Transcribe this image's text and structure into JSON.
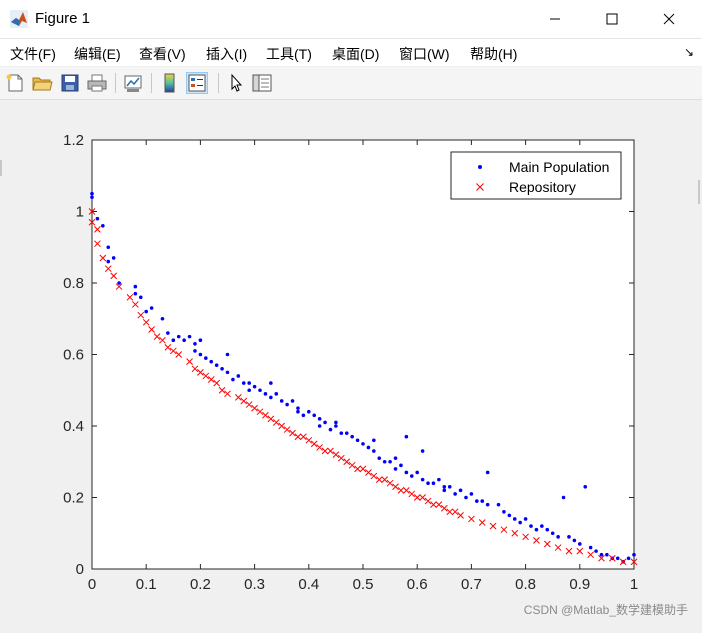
{
  "window": {
    "title": "Figure 1",
    "buttons": {
      "minimize_icon": "minimize-icon",
      "maximize_icon": "maximize-icon",
      "close_icon": "close-icon"
    }
  },
  "menubar": {
    "items": [
      {
        "label": "文件(F)",
        "key": "file"
      },
      {
        "label": "编辑(E)",
        "key": "edit"
      },
      {
        "label": "查看(V)",
        "key": "view"
      },
      {
        "label": "插入(I)",
        "key": "insert"
      },
      {
        "label": "工具(T)",
        "key": "tools"
      },
      {
        "label": "桌面(D)",
        "key": "desktop"
      },
      {
        "label": "窗口(W)",
        "key": "window"
      },
      {
        "label": "帮助(H)",
        "key": "help"
      }
    ],
    "dock_arrow": "↘"
  },
  "toolbar": {
    "tools": [
      "new-figure-icon",
      "open-file-icon",
      "save-icon",
      "print-icon",
      "link-plot-icon",
      "colorbar-icon",
      "legend-icon",
      "pointer-icon",
      "property-inspector-icon"
    ]
  },
  "watermark": "CSDN @Matlab_数学建模助手",
  "colors": {
    "main_population": "#0000ff",
    "repository": "#ff0000",
    "axes_bg": "#ffffff",
    "figure_bg": "#f0f0f0"
  },
  "chart_data": {
    "type": "scatter",
    "title": "",
    "xlabel": "",
    "ylabel": "",
    "xlim": [
      0,
      1
    ],
    "ylim": [
      0,
      1.2
    ],
    "xticks": [
      "0",
      "0.1",
      "0.2",
      "0.3",
      "0.4",
      "0.5",
      "0.6",
      "0.7",
      "0.8",
      "0.9",
      "1"
    ],
    "yticks": [
      "0",
      "0.2",
      "0.4",
      "0.6",
      "0.8",
      "1",
      "1.2"
    ],
    "grid": false,
    "box": true,
    "legend": {
      "position": "top-right"
    },
    "series": [
      {
        "name": "Main Population",
        "marker": "dot",
        "color": "#0000ff",
        "points": [
          [
            0.0,
            1.05
          ],
          [
            0.0,
            1.04
          ],
          [
            0.01,
            0.98
          ],
          [
            0.02,
            0.96
          ],
          [
            0.03,
            0.9
          ],
          [
            0.03,
            0.86
          ],
          [
            0.04,
            0.87
          ],
          [
            0.05,
            0.8
          ],
          [
            0.08,
            0.79
          ],
          [
            0.08,
            0.77
          ],
          [
            0.09,
            0.76
          ],
          [
            0.1,
            0.72
          ],
          [
            0.11,
            0.73
          ],
          [
            0.13,
            0.7
          ],
          [
            0.14,
            0.66
          ],
          [
            0.15,
            0.64
          ],
          [
            0.16,
            0.65
          ],
          [
            0.17,
            0.64
          ],
          [
            0.18,
            0.65
          ],
          [
            0.19,
            0.63
          ],
          [
            0.2,
            0.64
          ],
          [
            0.19,
            0.61
          ],
          [
            0.2,
            0.6
          ],
          [
            0.21,
            0.59
          ],
          [
            0.22,
            0.58
          ],
          [
            0.23,
            0.57
          ],
          [
            0.24,
            0.56
          ],
          [
            0.25,
            0.6
          ],
          [
            0.25,
            0.55
          ],
          [
            0.26,
            0.53
          ],
          [
            0.27,
            0.54
          ],
          [
            0.28,
            0.52
          ],
          [
            0.29,
            0.52
          ],
          [
            0.29,
            0.5
          ],
          [
            0.3,
            0.51
          ],
          [
            0.31,
            0.5
          ],
          [
            0.32,
            0.49
          ],
          [
            0.33,
            0.52
          ],
          [
            0.33,
            0.48
          ],
          [
            0.34,
            0.49
          ],
          [
            0.35,
            0.47
          ],
          [
            0.36,
            0.46
          ],
          [
            0.37,
            0.47
          ],
          [
            0.38,
            0.44
          ],
          [
            0.38,
            0.45
          ],
          [
            0.39,
            0.43
          ],
          [
            0.4,
            0.44
          ],
          [
            0.41,
            0.43
          ],
          [
            0.42,
            0.42
          ],
          [
            0.42,
            0.4
          ],
          [
            0.43,
            0.41
          ],
          [
            0.44,
            0.39
          ],
          [
            0.45,
            0.4
          ],
          [
            0.45,
            0.41
          ],
          [
            0.46,
            0.38
          ],
          [
            0.47,
            0.38
          ],
          [
            0.48,
            0.37
          ],
          [
            0.49,
            0.36
          ],
          [
            0.5,
            0.35
          ],
          [
            0.51,
            0.34
          ],
          [
            0.52,
            0.33
          ],
          [
            0.52,
            0.36
          ],
          [
            0.53,
            0.31
          ],
          [
            0.54,
            0.3
          ],
          [
            0.55,
            0.3
          ],
          [
            0.56,
            0.31
          ],
          [
            0.56,
            0.28
          ],
          [
            0.57,
            0.29
          ],
          [
            0.58,
            0.27
          ],
          [
            0.58,
            0.37
          ],
          [
            0.59,
            0.26
          ],
          [
            0.6,
            0.27
          ],
          [
            0.61,
            0.25
          ],
          [
            0.61,
            0.33
          ],
          [
            0.62,
            0.24
          ],
          [
            0.63,
            0.24
          ],
          [
            0.64,
            0.25
          ],
          [
            0.65,
            0.23
          ],
          [
            0.65,
            0.22
          ],
          [
            0.66,
            0.23
          ],
          [
            0.67,
            0.21
          ],
          [
            0.68,
            0.22
          ],
          [
            0.69,
            0.2
          ],
          [
            0.7,
            0.21
          ],
          [
            0.71,
            0.19
          ],
          [
            0.72,
            0.19
          ],
          [
            0.73,
            0.27
          ],
          [
            0.73,
            0.18
          ],
          [
            0.75,
            0.18
          ],
          [
            0.76,
            0.16
          ],
          [
            0.77,
            0.15
          ],
          [
            0.78,
            0.14
          ],
          [
            0.79,
            0.13
          ],
          [
            0.8,
            0.14
          ],
          [
            0.81,
            0.12
          ],
          [
            0.82,
            0.11
          ],
          [
            0.83,
            0.12
          ],
          [
            0.84,
            0.11
          ],
          [
            0.85,
            0.1
          ],
          [
            0.86,
            0.09
          ],
          [
            0.87,
            0.2
          ],
          [
            0.88,
            0.09
          ],
          [
            0.89,
            0.08
          ],
          [
            0.9,
            0.07
          ],
          [
            0.91,
            0.23
          ],
          [
            0.92,
            0.06
          ],
          [
            0.93,
            0.05
          ],
          [
            0.94,
            0.04
          ],
          [
            0.95,
            0.04
          ],
          [
            0.96,
            0.03
          ],
          [
            0.97,
            0.03
          ],
          [
            0.98,
            0.02
          ],
          [
            0.99,
            0.03
          ],
          [
            1.0,
            0.04
          ]
        ]
      },
      {
        "name": "Repository",
        "marker": "x",
        "color": "#ff0000",
        "points": [
          [
            0.0,
            1.0
          ],
          [
            0.0,
            0.97
          ],
          [
            0.01,
            0.95
          ],
          [
            0.01,
            0.91
          ],
          [
            0.02,
            0.87
          ],
          [
            0.03,
            0.84
          ],
          [
            0.04,
            0.82
          ],
          [
            0.05,
            0.79
          ],
          [
            0.07,
            0.76
          ],
          [
            0.08,
            0.74
          ],
          [
            0.09,
            0.71
          ],
          [
            0.1,
            0.69
          ],
          [
            0.11,
            0.67
          ],
          [
            0.12,
            0.65
          ],
          [
            0.13,
            0.64
          ],
          [
            0.14,
            0.62
          ],
          [
            0.15,
            0.61
          ],
          [
            0.16,
            0.6
          ],
          [
            0.18,
            0.58
          ],
          [
            0.19,
            0.56
          ],
          [
            0.2,
            0.55
          ],
          [
            0.21,
            0.54
          ],
          [
            0.22,
            0.53
          ],
          [
            0.23,
            0.52
          ],
          [
            0.24,
            0.5
          ],
          [
            0.25,
            0.49
          ],
          [
            0.27,
            0.48
          ],
          [
            0.28,
            0.47
          ],
          [
            0.29,
            0.46
          ],
          [
            0.3,
            0.45
          ],
          [
            0.31,
            0.44
          ],
          [
            0.32,
            0.43
          ],
          [
            0.33,
            0.42
          ],
          [
            0.34,
            0.41
          ],
          [
            0.35,
            0.4
          ],
          [
            0.36,
            0.39
          ],
          [
            0.37,
            0.38
          ],
          [
            0.38,
            0.37
          ],
          [
            0.39,
            0.37
          ],
          [
            0.4,
            0.36
          ],
          [
            0.41,
            0.35
          ],
          [
            0.42,
            0.34
          ],
          [
            0.43,
            0.33
          ],
          [
            0.44,
            0.33
          ],
          [
            0.45,
            0.32
          ],
          [
            0.46,
            0.31
          ],
          [
            0.47,
            0.3
          ],
          [
            0.48,
            0.29
          ],
          [
            0.49,
            0.28
          ],
          [
            0.5,
            0.28
          ],
          [
            0.51,
            0.27
          ],
          [
            0.52,
            0.26
          ],
          [
            0.53,
            0.25
          ],
          [
            0.54,
            0.25
          ],
          [
            0.55,
            0.24
          ],
          [
            0.56,
            0.23
          ],
          [
            0.57,
            0.22
          ],
          [
            0.58,
            0.22
          ],
          [
            0.59,
            0.21
          ],
          [
            0.6,
            0.2
          ],
          [
            0.61,
            0.2
          ],
          [
            0.62,
            0.19
          ],
          [
            0.63,
            0.18
          ],
          [
            0.64,
            0.18
          ],
          [
            0.65,
            0.17
          ],
          [
            0.66,
            0.16
          ],
          [
            0.67,
            0.16
          ],
          [
            0.68,
            0.15
          ],
          [
            0.7,
            0.14
          ],
          [
            0.72,
            0.13
          ],
          [
            0.74,
            0.12
          ],
          [
            0.76,
            0.11
          ],
          [
            0.78,
            0.1
          ],
          [
            0.8,
            0.09
          ],
          [
            0.82,
            0.08
          ],
          [
            0.84,
            0.07
          ],
          [
            0.86,
            0.06
          ],
          [
            0.88,
            0.05
          ],
          [
            0.9,
            0.05
          ],
          [
            0.92,
            0.04
          ],
          [
            0.94,
            0.03
          ],
          [
            0.96,
            0.03
          ],
          [
            0.98,
            0.02
          ],
          [
            1.0,
            0.02
          ]
        ]
      }
    ]
  }
}
